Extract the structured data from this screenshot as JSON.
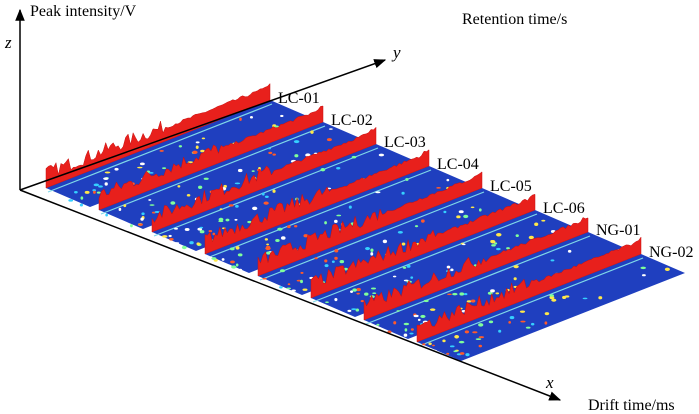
{
  "chart_data": {
    "type": "3d-spectra",
    "z_axis": "z",
    "z_label": "Peak intensity/V",
    "y_axis": "y",
    "y_label": "Retention time/s",
    "x_axis": "x",
    "x_label": "Drift time/ms",
    "series": [
      {
        "name": "LC-01"
      },
      {
        "name": "LC-02"
      },
      {
        "name": "LC-03"
      },
      {
        "name": "LC-04"
      },
      {
        "name": "LC-05"
      },
      {
        "name": "LC-06"
      },
      {
        "name": "NG-01"
      },
      {
        "name": "NG-02"
      }
    ]
  }
}
